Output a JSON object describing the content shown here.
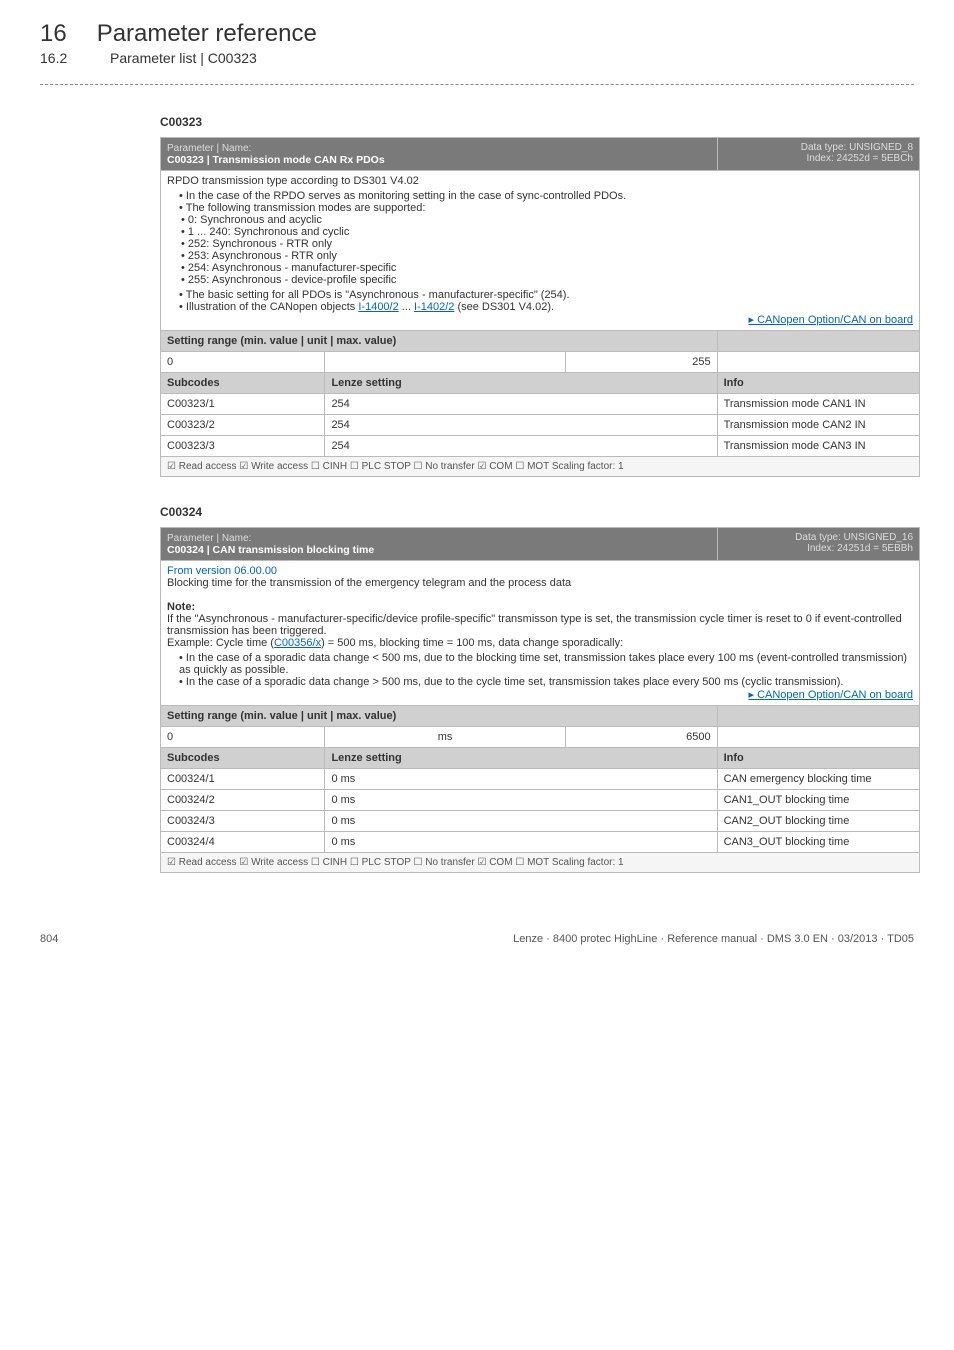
{
  "header": {
    "chapter_num": "16",
    "chapter_title": "Parameter reference",
    "section_num": "16.2",
    "section_title": "Parameter list | C00323"
  },
  "c00323": {
    "code": "C00323",
    "hdr_small": "Parameter | Name:",
    "hdr_name": "C00323 | Transmission mode CAN Rx PDOs",
    "datatype_line1": "Data type: UNSIGNED_8",
    "datatype_line2": "Index: 24252d = 5EBCh",
    "desc_line1": "RPDO transmission type according to DS301 V4.02",
    "bullets": [
      "In the case of the RPDO serves as monitoring setting in the case of sync-controlled PDOs.",
      "The following transmission modes are supported:"
    ],
    "sub_bullets": [
      "0: Synchronous and acyclic",
      "1 ... 240: Synchronous and cyclic",
      "252: Synchronous - RTR only",
      "253: Asynchronous - RTR only",
      "254: Asynchronous - manufacturer-specific",
      "255: Asynchronous - device-profile specific"
    ],
    "bullets2_pre": "The basic setting for all PDOs is \"Asynchronous - manufacturer-specific\" (254).",
    "bullets3_pre": "Illustration of the CANopen objects ",
    "link_a": "I-1400/2",
    "link_sep": " ... ",
    "link_b": "I-1402/2",
    "bullets3_post": " (see DS301 V4.02).",
    "right_link": "CANopen Option/CAN on board",
    "setting_range_label": "Setting range (min. value | unit | max. value)",
    "range_min": "0",
    "range_unit": "",
    "range_max": "255",
    "sub_label": "Subcodes",
    "lenze_label": "Lenze setting",
    "info_label": "Info",
    "rows": [
      {
        "sub": "C00323/1",
        "lenze": "254",
        "info": "Transmission mode CAN1 IN"
      },
      {
        "sub": "C00323/2",
        "lenze": "254",
        "info": "Transmission mode CAN2 IN"
      },
      {
        "sub": "C00323/3",
        "lenze": "254",
        "info": "Transmission mode CAN3 IN"
      }
    ],
    "footer": "☑ Read access   ☑ Write access   ☐ CINH   ☐ PLC STOP   ☐ No transfer   ☑ COM   ☐ MOT    Scaling factor: 1"
  },
  "c00324": {
    "code": "C00324",
    "hdr_small": "Parameter | Name:",
    "hdr_name": "C00324 | CAN transmission blocking time",
    "datatype_line1": "Data type: UNSIGNED_16",
    "datatype_line2": "Index: 24251d = 5EBBh",
    "from_version": "From version 06.00.00",
    "desc_line1": "Blocking time for the transmission of the emergency telegram and the process data",
    "note_label": "Note:",
    "note_p1a": "If the \"Asynchronous - manufacturer-specific/device profile-specific\" transmisson type is set, the transmission cycle timer is reset to 0 if event-controlled transmission has been triggered.",
    "note_p2_pre": "Example: Cycle time (",
    "note_p2_link": "C00356/x",
    "note_p2_post": ") = 500 ms, blocking time = 100 ms, data change sporadically:",
    "note_bullets": [
      "In the case of a sporadic data change < 500 ms, due to the blocking time set, transmission takes place every 100 ms (event-controlled transmission) as quickly as possible.",
      "In the case of a sporadic data change > 500 ms, due to the cycle time set, transmission takes place every 500 ms (cyclic transmission)."
    ],
    "right_link": "CANopen Option/CAN on board",
    "setting_range_label": "Setting range (min. value | unit | max. value)",
    "range_min": "0",
    "range_unit": "ms",
    "range_max": "6500",
    "sub_label": "Subcodes",
    "lenze_label": "Lenze setting",
    "info_label": "Info",
    "rows": [
      {
        "sub": "C00324/1",
        "lenze": "0 ms",
        "info": "CAN emergency blocking time"
      },
      {
        "sub": "C00324/2",
        "lenze": "0 ms",
        "info": "CAN1_OUT blocking time"
      },
      {
        "sub": "C00324/3",
        "lenze": "0 ms",
        "info": "CAN2_OUT blocking time"
      },
      {
        "sub": "C00324/4",
        "lenze": "0 ms",
        "info": "CAN3_OUT blocking time"
      }
    ],
    "footer": "☑ Read access   ☑ Write access   ☐ CINH   ☐ PLC STOP   ☐ No transfer   ☑ COM   ☐ MOT    Scaling factor: 1"
  },
  "footer": {
    "page": "804",
    "right": "Lenze · 8400 protec HighLine · Reference manual · DMS 3.0 EN · 03/2013 · TD05"
  }
}
